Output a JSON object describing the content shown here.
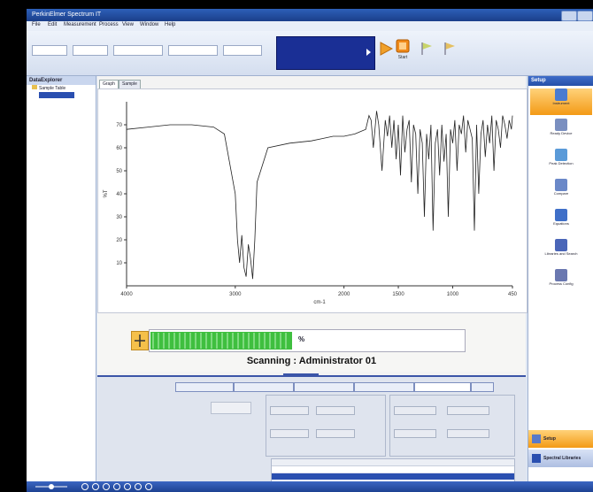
{
  "app": {
    "title": "PerkinElmer Spectrum IT"
  },
  "menu": [
    "File",
    "Edit",
    "Measurement",
    "Process",
    "View",
    "Window",
    "Help"
  ],
  "toolbar": {
    "fields": [
      {
        "label": "",
        "value": ""
      },
      {
        "label": "",
        "value": ""
      },
      {
        "label": "",
        "value": ""
      },
      {
        "label": "",
        "value": ""
      },
      {
        "label": "",
        "value": ""
      }
    ],
    "status_lines": [
      "",
      "",
      ""
    ],
    "start_label": "Start"
  },
  "data_explorer": {
    "title": "DataExplorer",
    "items": [
      "Sample Table",
      ""
    ]
  },
  "graph_tabs": [
    "Graph",
    "Sample Table"
  ],
  "chart_data": {
    "type": "line",
    "title": "",
    "xlabel": "cm-1",
    "ylabel": "%T",
    "xlim": [
      4000,
      450
    ],
    "ylim": [
      0,
      80
    ],
    "x_ticks": [
      "4000",
      "3000",
      "2000",
      "1500",
      "1000",
      "450"
    ],
    "y_ticks": [
      "10",
      "20",
      "30",
      "40",
      "50",
      "60",
      "70"
    ],
    "grid": false,
    "series": [
      {
        "name": "",
        "x": [
          4000,
          3800,
          3600,
          3400,
          3200,
          3100,
          3000,
          2980,
          2960,
          2940,
          2920,
          2900,
          2880,
          2860,
          2840,
          2820,
          2800,
          2700,
          2500,
          2300,
          2200,
          2100,
          2000,
          1900,
          1850,
          1800,
          1770,
          1750,
          1730,
          1700,
          1680,
          1650,
          1620,
          1600,
          1580,
          1560,
          1540,
          1520,
          1500,
          1480,
          1460,
          1440,
          1420,
          1400,
          1380,
          1360,
          1340,
          1320,
          1300,
          1280,
          1260,
          1240,
          1220,
          1200,
          1180,
          1160,
          1140,
          1120,
          1100,
          1080,
          1060,
          1040,
          1020,
          1000,
          980,
          960,
          940,
          920,
          900,
          880,
          860,
          840,
          820,
          800,
          780,
          760,
          740,
          720,
          700,
          680,
          660,
          640,
          620,
          600,
          580,
          560,
          540,
          520,
          500,
          480,
          460,
          450
        ],
        "values": [
          68,
          69,
          70,
          70,
          69,
          66,
          40,
          20,
          10,
          22,
          8,
          4,
          18,
          12,
          3,
          20,
          45,
          60,
          62,
          63,
          64,
          65,
          65,
          66,
          67,
          68,
          74,
          72,
          60,
          76,
          70,
          50,
          72,
          65,
          74,
          60,
          72,
          55,
          70,
          48,
          74,
          58,
          68,
          72,
          45,
          70,
          66,
          40,
          68,
          62,
          30,
          66,
          55,
          70,
          24,
          62,
          68,
          48,
          70,
          54,
          66,
          30,
          68,
          62,
          72,
          50,
          70,
          66,
          74,
          58,
          72,
          68,
          64,
          24,
          70,
          40,
          66,
          72,
          56,
          70,
          62,
          74,
          50,
          72,
          68,
          60,
          74,
          70,
          64,
          72,
          68,
          74
        ]
      }
    ]
  },
  "progress": {
    "value": 0.45,
    "label": "%"
  },
  "scanning_text": "Scanning : Administrator 01",
  "lower_tabs": [
    "",
    "",
    "",
    "",
    "",
    ""
  ],
  "setup": {
    "title": "Setup",
    "items": [
      {
        "label": "Instrument",
        "icon": "instrument-icon"
      },
      {
        "label": "Ready Device",
        "icon": "ready-device-icon"
      },
      {
        "label": "Peak Detection",
        "icon": "peak-detection-icon"
      },
      {
        "label": "Compare",
        "icon": "compare-icon"
      },
      {
        "label": "Equations",
        "icon": "equations-icon"
      },
      {
        "label": "Libraries and Search",
        "icon": "libraries-icon"
      },
      {
        "label": "Process Config",
        "icon": "process-config-icon"
      }
    ],
    "bottom_items": [
      "Setup",
      "Spectral Libraries"
    ]
  },
  "colors": {
    "accent": "#2650a8",
    "status_bg": "#1a2f95",
    "progress_fill": "#3fbf3f",
    "active_nav": "#f39a16"
  }
}
